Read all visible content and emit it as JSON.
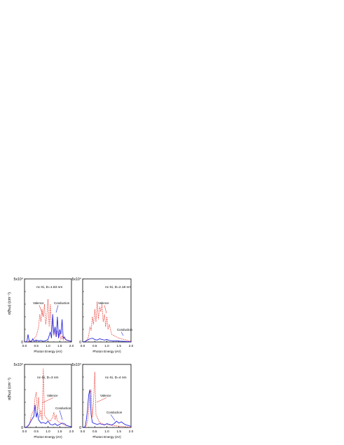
{
  "figure": {
    "panels": [
      {
        "id": "a",
        "annotation": "nc-Si, D=1.63 nm",
        "ylabel": "α(ħω) (cm⁻¹)",
        "xlabel": "Photon Energy (eV)",
        "ymax_label": "5x10⁴",
        "yzero_label": "0",
        "valence_label": "Valence",
        "conduction_label": "Conduction"
      },
      {
        "id": "b",
        "annotation": "nc-Si, D=2.18 nm",
        "ylabel": "",
        "xlabel": "Photon Energy (eV)",
        "ymax_label": "5x10⁴",
        "yzero_label": "0",
        "valence_label": "Valence",
        "conduction_label": "Conduction"
      },
      {
        "id": "c",
        "annotation": "nc-Si, D=3 nm",
        "ylabel": "α(ħω) (cm⁻¹)",
        "xlabel": "Photon Energy (eV)",
        "ymax_label": "5x10⁴",
        "yzero_label": "0",
        "valence_label": "Valence",
        "conduction_label": "Conduction"
      },
      {
        "id": "d",
        "annotation": "nc-Si, D=4 nm",
        "ylabel": "",
        "xlabel": "Photon Energy (eV)",
        "ymax_label": "5x10⁴",
        "yzero_label": "0",
        "valence_label": "Valence",
        "conduction_label": "Conduction"
      }
    ]
  },
  "chart_data": [
    {
      "type": "line",
      "title": "nc-Si, D=1.63 nm",
      "xlabel": "Photon Energy (eV)",
      "ylabel": "α(ħω) (cm⁻¹)",
      "xlim": [
        0,
        2.0
      ],
      "ylim": [
        0,
        50000
      ],
      "xticks": [
        "0.0",
        "0.5",
        "1.0",
        "1.5",
        "2.0"
      ],
      "colors": {
        "valence": "#e8433a",
        "conduction": "#2a2ae0"
      },
      "series": [
        {
          "name": "Valence",
          "style": "dashed",
          "x": [
            0.0,
            0.1,
            0.2,
            0.3,
            0.4,
            0.45,
            0.5,
            0.55,
            0.6,
            0.65,
            0.7,
            0.75,
            0.8,
            0.85,
            0.9,
            0.95,
            1.0,
            1.05,
            1.1,
            1.15,
            1.2,
            1.25,
            1.3,
            1.35,
            1.4,
            1.45,
            1.5,
            1.55,
            1.6,
            1.65,
            1.7,
            1.8,
            1.9,
            2.0
          ],
          "y": [
            0,
            200,
            500,
            1000,
            2500,
            3500,
            5000,
            8000,
            12000,
            22000,
            16000,
            26000,
            20000,
            30000,
            14000,
            20000,
            34000,
            12000,
            30000,
            8000,
            18000,
            5000,
            12000,
            4000,
            9000,
            3000,
            7000,
            2000,
            5000,
            1500,
            3000,
            1200,
            800,
            500
          ]
        },
        {
          "name": "Conduction",
          "style": "solid",
          "x": [
            0.0,
            0.1,
            0.15,
            0.2,
            0.3,
            0.35,
            0.4,
            0.5,
            0.6,
            0.7,
            0.8,
            0.9,
            1.0,
            1.05,
            1.1,
            1.15,
            1.2,
            1.25,
            1.3,
            1.35,
            1.4,
            1.45,
            1.5,
            1.55,
            1.6,
            1.65,
            1.7,
            1.75,
            1.8,
            1.9,
            2.0
          ],
          "y": [
            0,
            300,
            6000,
            800,
            500,
            2500,
            600,
            1500,
            800,
            1200,
            600,
            1000,
            2000,
            5000,
            8000,
            3000,
            22000,
            6000,
            12000,
            4000,
            20000,
            3000,
            10000,
            6000,
            18000,
            3000,
            4000,
            2000,
            1500,
            1000,
            500
          ]
        }
      ]
    },
    {
      "type": "line",
      "title": "nc-Si, D=2.18 nm",
      "xlabel": "Photon Energy (eV)",
      "ylabel": "",
      "xlim": [
        0,
        2.0
      ],
      "ylim": [
        0,
        50000
      ],
      "xticks": [
        "0.0",
        "0.5",
        "1.0",
        "1.5",
        "2.0"
      ],
      "colors": {
        "valence": "#e8433a",
        "conduction": "#2a2ae0"
      },
      "series": [
        {
          "name": "Valence",
          "style": "dashed",
          "x": [
            0.0,
            0.1,
            0.2,
            0.25,
            0.3,
            0.35,
            0.4,
            0.45,
            0.5,
            0.55,
            0.6,
            0.65,
            0.7,
            0.75,
            0.8,
            0.85,
            0.9,
            0.95,
            1.0,
            1.05,
            1.1,
            1.2,
            1.3,
            1.4,
            1.5,
            1.6,
            1.7,
            1.8,
            1.9,
            2.0
          ],
          "y": [
            0,
            500,
            2000,
            5000,
            12000,
            9000,
            20000,
            14000,
            26000,
            16000,
            32000,
            18000,
            28000,
            24000,
            30000,
            16000,
            22000,
            12000,
            20000,
            10000,
            14000,
            6000,
            5000,
            4000,
            3000,
            2500,
            2000,
            1500,
            1000,
            500
          ]
        },
        {
          "name": "Conduction",
          "style": "solid",
          "x": [
            0.0,
            0.1,
            0.2,
            0.3,
            0.4,
            0.5,
            0.6,
            0.7,
            0.8,
            0.9,
            1.0,
            1.1,
            1.2,
            1.3,
            1.4,
            1.5,
            1.6,
            1.7,
            1.8,
            1.9,
            2.0
          ],
          "y": [
            0,
            400,
            1500,
            2500,
            3000,
            2000,
            1500,
            2500,
            2000,
            1500,
            2000,
            1200,
            1000,
            800,
            900,
            700,
            600,
            500,
            400,
            300,
            200
          ]
        }
      ]
    },
    {
      "type": "line",
      "title": "nc-Si, D=3 nm",
      "xlabel": "Photon Energy (eV)",
      "ylabel": "α(ħω) (cm⁻¹)",
      "xlim": [
        0,
        2.0
      ],
      "ylim": [
        0,
        50000
      ],
      "xticks": [
        "0.0",
        "0.5",
        "1.0",
        "1.5",
        "2.0"
      ],
      "colors": {
        "valence": "#e8433a",
        "conduction": "#2a2ae0"
      },
      "series": [
        {
          "name": "Valence",
          "style": "dashed",
          "x": [
            0.0,
            0.1,
            0.2,
            0.3,
            0.4,
            0.45,
            0.5,
            0.55,
            0.6,
            0.65,
            0.7,
            0.75,
            0.8,
            0.85,
            0.9,
            1.0,
            1.1,
            1.2,
            1.25,
            1.3,
            1.35,
            1.4,
            1.5,
            1.6,
            1.7,
            1.8,
            1.9,
            2.0
          ],
          "y": [
            0,
            300,
            2000,
            10000,
            14000,
            24000,
            28000,
            12000,
            24000,
            8000,
            14000,
            6000,
            47000,
            10000,
            8000,
            6000,
            5000,
            8000,
            12000,
            6000,
            10000,
            5000,
            4000,
            3000,
            2000,
            1500,
            1000,
            500
          ]
        },
        {
          "name": "Conduction",
          "style": "solid",
          "x": [
            0.0,
            0.1,
            0.2,
            0.3,
            0.4,
            0.45,
            0.5,
            0.55,
            0.6,
            0.7,
            0.8,
            0.9,
            1.0,
            1.1,
            1.2,
            1.3,
            1.4,
            1.5,
            1.6,
            1.7,
            1.8,
            1.9,
            2.0
          ],
          "y": [
            0,
            500,
            2500,
            6000,
            9000,
            18000,
            8000,
            12000,
            6000,
            3500,
            4000,
            3000,
            5000,
            2500,
            2000,
            3000,
            1500,
            2500,
            3500,
            3000,
            1500,
            1000,
            500
          ]
        }
      ]
    },
    {
      "type": "line",
      "title": "nc-Si, D=4 nm",
      "xlabel": "Photon Energy (eV)",
      "ylabel": "",
      "xlim": [
        0,
        2.0
      ],
      "ylim": [
        0,
        50000
      ],
      "xticks": [
        "0.0",
        "0.5",
        "1.0",
        "1.5",
        "2.0"
      ],
      "colors": {
        "valence": "#e8433a",
        "conduction": "#2a2ae0"
      },
      "series": [
        {
          "name": "Valence",
          "style": "dashed",
          "x": [
            0.0,
            0.1,
            0.15,
            0.2,
            0.25,
            0.3,
            0.35,
            0.4,
            0.45,
            0.5,
            0.55,
            0.6,
            0.65,
            0.7,
            0.8,
            0.9,
            1.0,
            1.1,
            1.2,
            1.3,
            1.4,
            1.5,
            1.6,
            1.7,
            1.8,
            1.9,
            2.0
          ],
          "y": [
            0,
            300,
            1500,
            5000,
            12000,
            26000,
            30000,
            8000,
            20000,
            44000,
            10000,
            8000,
            6000,
            4000,
            3000,
            2500,
            2500,
            2000,
            1800,
            1500,
            1200,
            1000,
            900,
            700,
            500,
            300,
            200
          ]
        },
        {
          "name": "Conduction",
          "style": "solid",
          "x": [
            0.0,
            0.1,
            0.15,
            0.2,
            0.25,
            0.3,
            0.35,
            0.4,
            0.5,
            0.6,
            0.7,
            0.8,
            0.9,
            1.0,
            1.1,
            1.2,
            1.3,
            1.4,
            1.5,
            1.6,
            1.7,
            1.8,
            1.9,
            2.0
          ],
          "y": [
            0,
            500,
            6000,
            14000,
            26000,
            30000,
            10000,
            4000,
            3000,
            2500,
            3000,
            2500,
            2000,
            3000,
            2500,
            2000,
            3000,
            5000,
            3500,
            4500,
            3000,
            2000,
            1500,
            800
          ]
        }
      ]
    }
  ]
}
